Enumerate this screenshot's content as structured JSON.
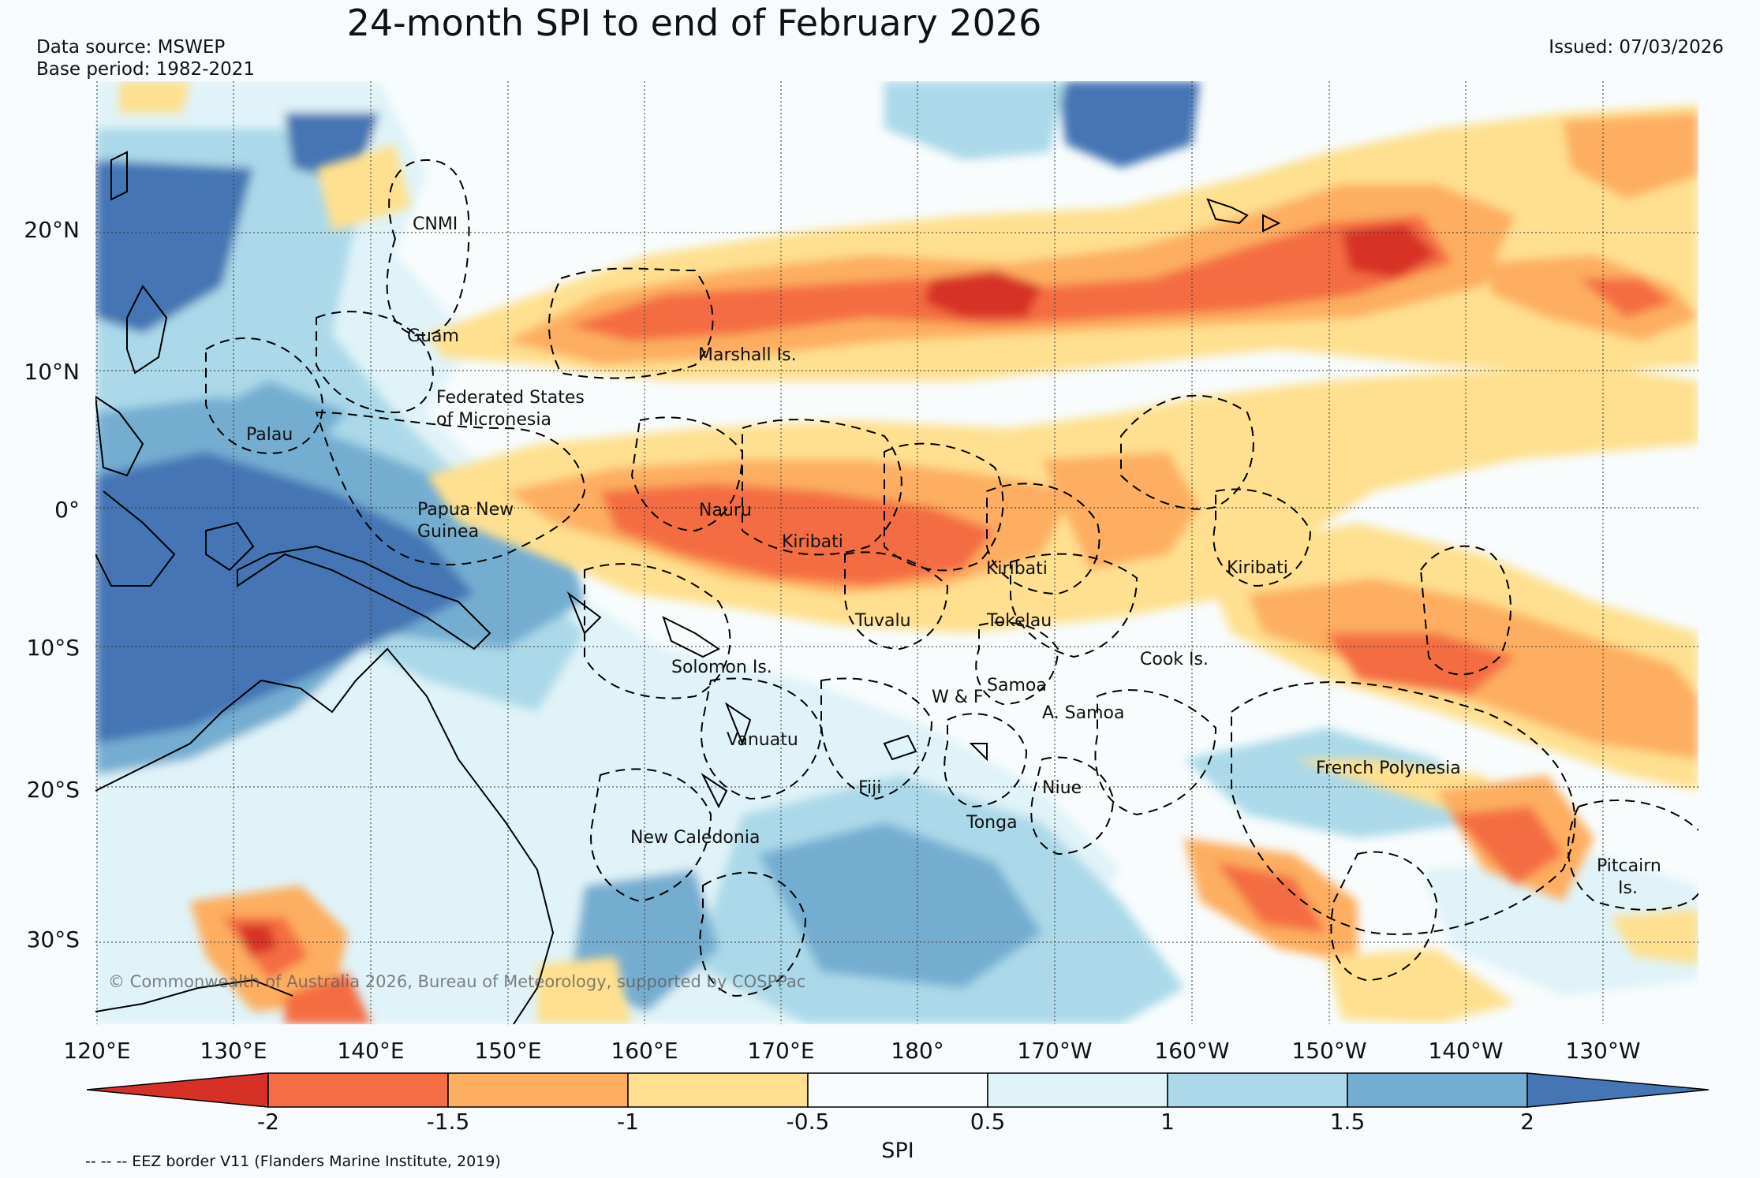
{
  "title": "24-month SPI to end of February 2026",
  "data_source": "Data source: MSWEP",
  "base_period": "Base period: 1982-2021",
  "issued": "Issued: 07/03/2026",
  "copyright": "© Commonwealth of Australia 2026, Bureau of Meteorology, supported by COSPPac",
  "footnote": "-- -- -- EEZ border V11 (Flanders Marine Institute, 2019)",
  "lat_labels": [
    "20°N",
    "10°N",
    "0°",
    "10°S",
    "20°S",
    "30°S"
  ],
  "lon_labels": [
    "120°E",
    "130°E",
    "140°E",
    "150°E",
    "160°E",
    "170°E",
    "180°",
    "170°W",
    "160°W",
    "150°W",
    "140°W",
    "130°W"
  ],
  "regions": [
    "CNMI",
    "Guam",
    "Marshall Is.",
    "Federated States",
    "of Micronesia",
    "Palau",
    "Papua New",
    "Guinea",
    "Nauru",
    "Kiribati",
    "Kiribati",
    "Kiribati",
    "Tuvalu",
    "Tokelau",
    "Cook Is.",
    "Solomon Is.",
    "Samoa",
    "W & F",
    "A. Samoa",
    "Vanuatu",
    "Fiji",
    "Niue",
    "Tonga",
    "French Polynesia",
    "New Caledonia",
    "Pitcairn",
    "Is."
  ],
  "colorbar": {
    "label": "SPI",
    "ticks": [
      "-2",
      "-1.5",
      "-1",
      "-0.5",
      "0.5",
      "1",
      "1.5",
      "2"
    ],
    "colors": [
      "#d73027",
      "#f46d43",
      "#fdae61",
      "#fee090",
      "#f7fbfd",
      "#e0f3f8",
      "#abd9e9",
      "#74add1",
      "#4575b4"
    ]
  }
}
